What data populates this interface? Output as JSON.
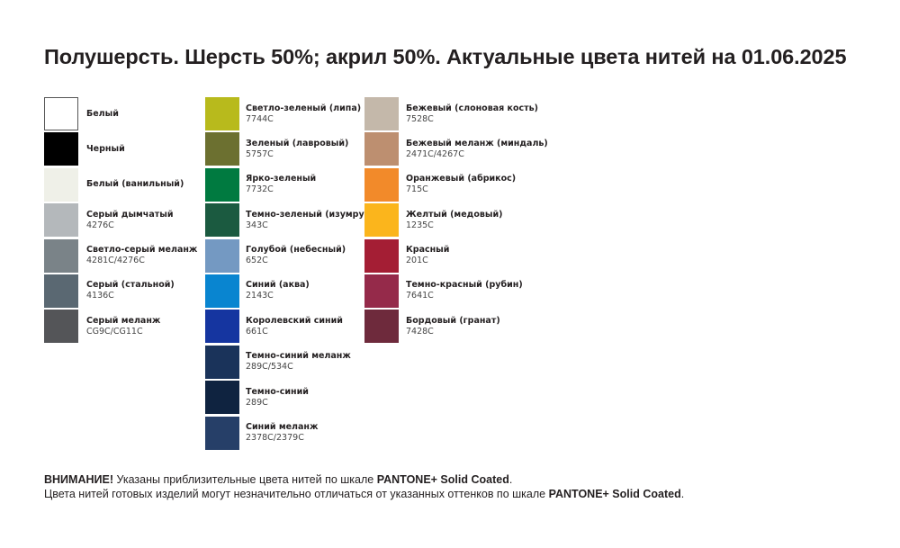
{
  "title": "Полушерсть. Шерсть 50%; акрил 50%. Актуальные цвета нитей на 01.06.2025",
  "columns": [
    [
      {
        "name": "Белый",
        "code": "",
        "color": "#ffffff"
      },
      {
        "name": "Черный",
        "code": "",
        "color": "#000000"
      },
      {
        "name": "Белый (ванильный)",
        "code": "",
        "color": "#eff0e8"
      },
      {
        "name": "Серый дымчатый",
        "code": "4276C",
        "color": "#b4b8bb"
      },
      {
        "name": "Светло-серый меланж",
        "code": "4281C/4276C",
        "color": "#7a8388"
      },
      {
        "name": "Серый (стальной)",
        "code": "4136C",
        "color": "#5a6872"
      },
      {
        "name": "Серый меланж",
        "code": "CG9C/CG11C",
        "color": "#545558"
      }
    ],
    [
      {
        "name": "Светло-зеленый (липа)",
        "code": "7744C",
        "color": "#b8ba1c"
      },
      {
        "name": "Зеленый (лавровый)",
        "code": "5757C",
        "color": "#6c7030"
      },
      {
        "name": "Ярко-зеленый",
        "code": "7732C",
        "color": "#007a40"
      },
      {
        "name": "Темно-зеленый (изумруд)",
        "code": "343C",
        "color": "#1b5a40"
      },
      {
        "name": "Голубой (небесный)",
        "code": "652C",
        "color": "#7499c2"
      },
      {
        "name": "Синий (аква)",
        "code": "2143C",
        "color": "#0985d0"
      },
      {
        "name": "Королевский синий",
        "code": "661C",
        "color": "#1535a0"
      },
      {
        "name": "Темно-синий меланж",
        "code": "289C/534C",
        "color": "#1a335a"
      },
      {
        "name": "Темно-синий",
        "code": "289C",
        "color": "#0f2340"
      },
      {
        "name": "Синий меланж",
        "code": "2378C/2379C",
        "color": "#263f68"
      }
    ],
    [
      {
        "name": "Бежевый (слоновая кость)",
        "code": "7528C",
        "color": "#c4b8aa"
      },
      {
        "name": "Бежевый меланж (миндаль)",
        "code": "2471C/4267C",
        "color": "#bd8f70"
      },
      {
        "name": "Оранжевый (абрикос)",
        "code": "715C",
        "color": "#f28a2a"
      },
      {
        "name": "Желтый (медовый)",
        "code": "1235C",
        "color": "#fbb51c"
      },
      {
        "name": "Красный",
        "code": "201C",
        "color": "#a41e34"
      },
      {
        "name": "Темно-красный (рубин)",
        "code": "7641C",
        "color": "#952a4a"
      },
      {
        "name": "Бордовый (гранат)",
        "code": "7428C",
        "color": "#6e2a3c"
      }
    ]
  ],
  "footer": {
    "line1_bold": "ВНИМАНИЕ!",
    "line1_text": " Указаны приблизительные цвета нитей по шкале ",
    "line1_brand": "PANTONE+ Solid Coated",
    "line1_end": ".",
    "line2_text": "Цвета нитей готовых изделий могут незначительно отличаться от указанных оттенков по шкале ",
    "line2_brand": "PANTONE+ Solid Coated",
    "line2_end": "."
  }
}
